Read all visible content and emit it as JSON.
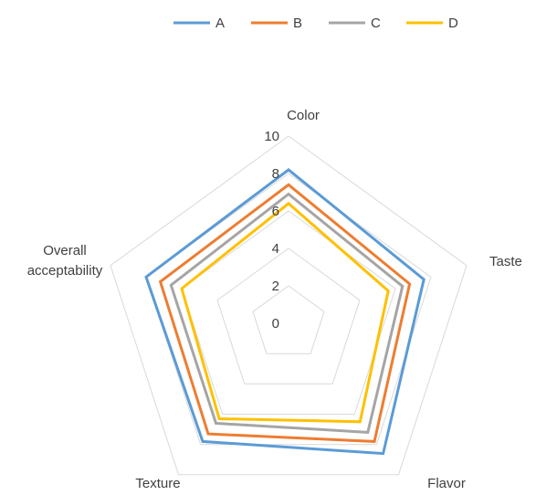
{
  "chart_data": {
    "type": "radar",
    "axes": [
      "Color",
      "Taste",
      "Flavor",
      "Texture",
      "Overall acceptability"
    ],
    "axis_label_lines": [
      [
        "Color"
      ],
      [
        "Taste"
      ],
      [
        "Flavor"
      ],
      [
        "Texture"
      ],
      [
        "Overall",
        "acceptability"
      ]
    ],
    "rlim": [
      0,
      10
    ],
    "ticks": [
      0,
      2,
      4,
      6,
      8,
      10
    ],
    "grid": true,
    "legend_position": "top",
    "series": [
      {
        "name": "A",
        "color": "#5B9BD5",
        "values": [
          8.2,
          7.6,
          8.6,
          7.8,
          8.0
        ]
      },
      {
        "name": "B",
        "color": "#ED7D31",
        "values": [
          7.4,
          6.8,
          7.8,
          7.3,
          7.2
        ]
      },
      {
        "name": "C",
        "color": "#A5A5A5",
        "values": [
          6.9,
          6.4,
          7.2,
          6.6,
          6.6
        ]
      },
      {
        "name": "D",
        "color": "#FFC000",
        "values": [
          6.4,
          5.6,
          6.5,
          6.3,
          6.0
        ]
      }
    ]
  }
}
